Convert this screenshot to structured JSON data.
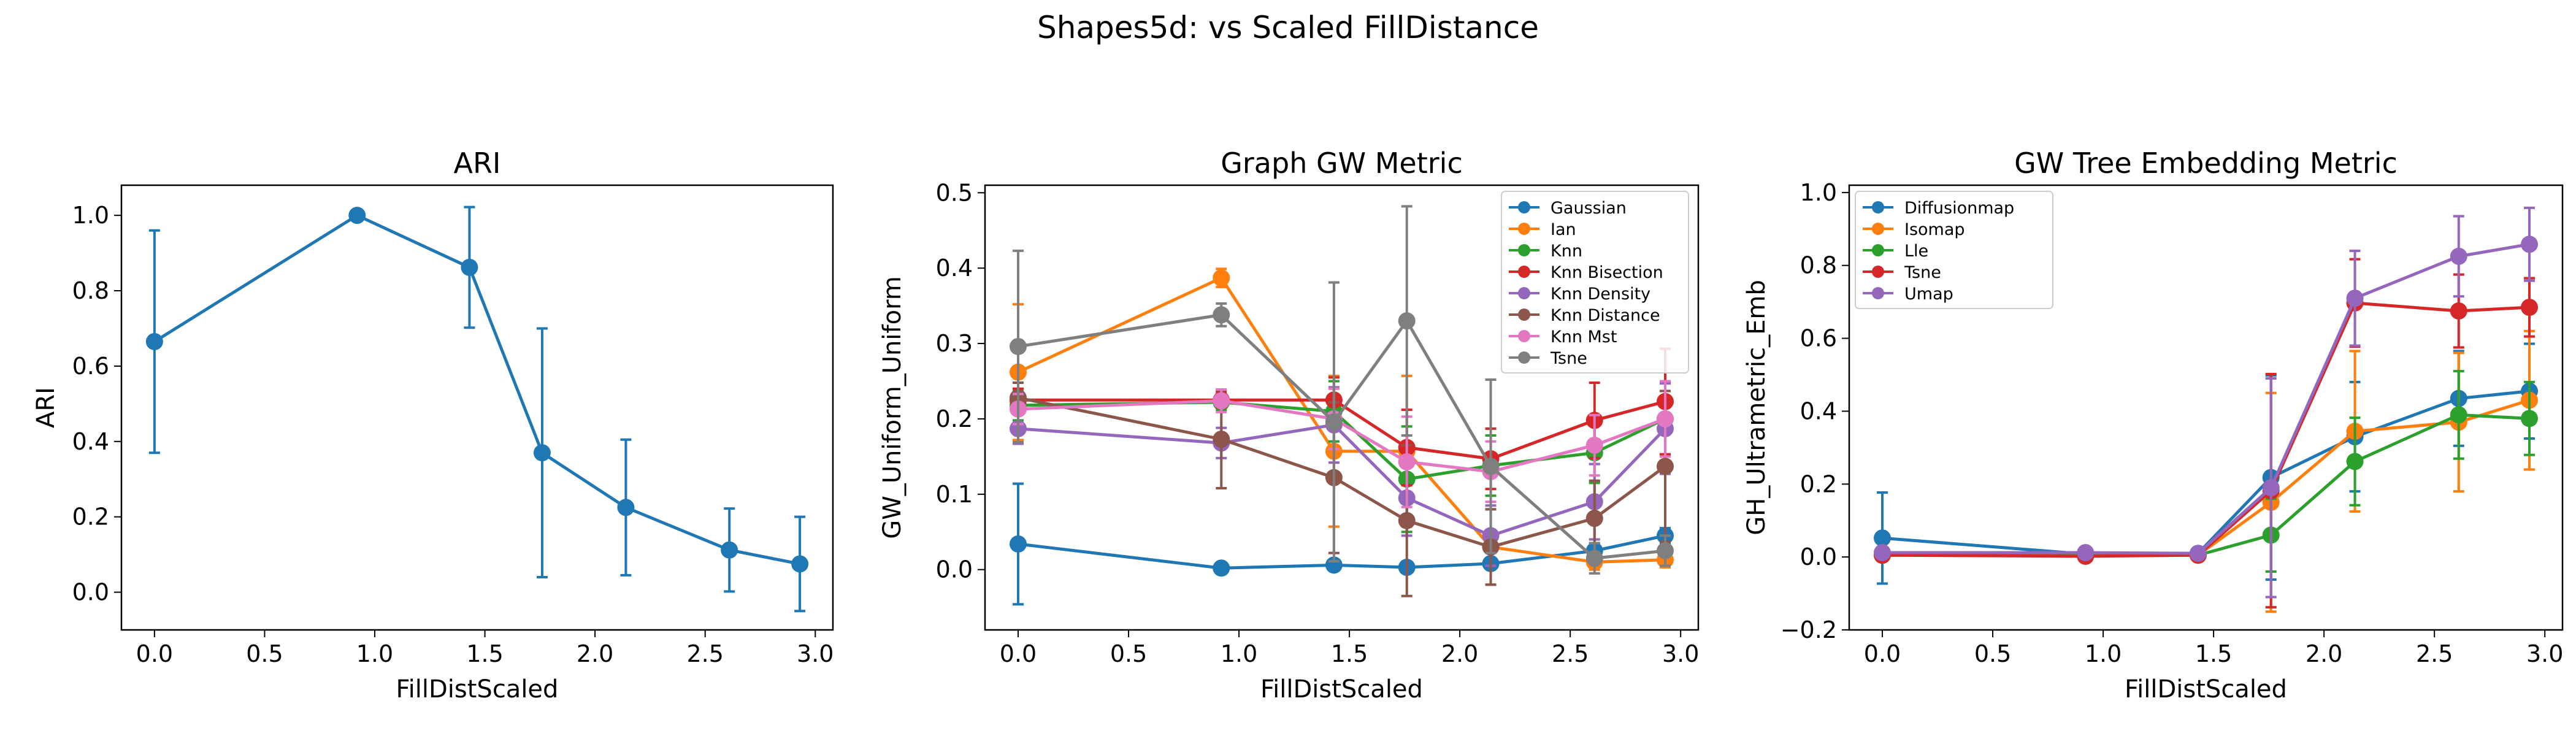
{
  "figure": {
    "suptitle": "Shapes5d: vs Scaled FillDistance"
  },
  "chart_data": [
    {
      "type": "line",
      "title": "ARI",
      "xlabel": "FillDistScaled",
      "ylabel": "ARI",
      "xlim": [
        -0.15,
        3.08
      ],
      "ylim": [
        -0.1,
        1.08
      ],
      "xticks": [
        0.0,
        0.5,
        1.0,
        1.5,
        2.0,
        2.5,
        3.0
      ],
      "yticks": [
        0.0,
        0.2,
        0.4,
        0.6,
        0.8,
        1.0
      ],
      "xtick_labels": [
        "0.0",
        "0.5",
        "1.0",
        "1.5",
        "2.0",
        "2.5",
        "3.0"
      ],
      "ytick_labels": [
        "0.0",
        "0.2",
        "0.4",
        "0.6",
        "0.8",
        "1.0"
      ],
      "legend": null,
      "x": [
        0.0,
        0.92,
        1.43,
        1.76,
        2.14,
        2.61,
        2.93
      ],
      "series": [
        {
          "color": "#1f77b4",
          "y": [
            0.665,
            1.0,
            0.862,
            0.37,
            0.225,
            0.112,
            0.075
          ],
          "err": [
            0.295,
            0.0,
            0.16,
            0.33,
            0.18,
            0.11,
            0.125
          ]
        }
      ]
    },
    {
      "type": "line",
      "title": "Graph GW Metric",
      "xlabel": "FillDistScaled",
      "ylabel": "GW_Uniform_Uniform",
      "xlim": [
        -0.15,
        3.08
      ],
      "ylim": [
        -0.08,
        0.51
      ],
      "xticks": [
        0.0,
        0.5,
        1.0,
        1.5,
        2.0,
        2.5,
        3.0
      ],
      "yticks": [
        0.0,
        0.1,
        0.2,
        0.3,
        0.4,
        0.5
      ],
      "xtick_labels": [
        "0.0",
        "0.5",
        "1.0",
        "1.5",
        "2.0",
        "2.5",
        "3.0"
      ],
      "ytick_labels": [
        "0.0",
        "0.1",
        "0.2",
        "0.3",
        "0.4",
        "0.5"
      ],
      "legend": "top-right",
      "x": [
        0.0,
        0.92,
        1.43,
        1.76,
        2.14,
        2.61,
        2.93
      ],
      "series": [
        {
          "name": "Gaussian",
          "color": "#1f77b4",
          "y": [
            0.034,
            0.002,
            0.006,
            0.003,
            0.008,
            0.025,
            0.045
          ],
          "err": [
            0.08,
            0.003,
            0.005,
            0.004,
            0.005,
            0.01,
            0.01
          ]
        },
        {
          "name": "Ian",
          "color": "#ff7f0e",
          "y": [
            0.262,
            0.387,
            0.157,
            0.157,
            0.03,
            0.01,
            0.013
          ],
          "err": [
            0.09,
            0.012,
            0.1,
            0.1,
            0.05,
            0.01,
            0.01
          ]
        },
        {
          "name": "Knn",
          "color": "#2ca02c",
          "y": [
            0.218,
            0.222,
            0.21,
            0.12,
            0.138,
            0.155,
            0.2
          ],
          "err": [
            0.02,
            0.01,
            0.04,
            0.07,
            0.04,
            0.04,
            0.05
          ]
        },
        {
          "name": "Knn Bisection",
          "color": "#d62728",
          "y": [
            0.225,
            0.225,
            0.225,
            0.162,
            0.147,
            0.198,
            0.223
          ],
          "err": [
            0.015,
            0.01,
            0.03,
            0.05,
            0.04,
            0.05,
            0.07
          ]
        },
        {
          "name": "Knn Density",
          "color": "#9467bd",
          "y": [
            0.187,
            0.168,
            0.192,
            0.095,
            0.045,
            0.09,
            0.187
          ],
          "err": [
            0.02,
            0.02,
            0.05,
            0.05,
            0.04,
            0.05,
            0.06
          ]
        },
        {
          "name": "Knn Distance",
          "color": "#8c564b",
          "y": [
            0.228,
            0.173,
            0.122,
            0.065,
            0.03,
            0.068,
            0.137
          ],
          "err": [
            0.02,
            0.065,
            0.1,
            0.1,
            0.05,
            0.05,
            0.1
          ]
        },
        {
          "name": "Knn Mst",
          "color": "#e377c2",
          "y": [
            0.213,
            0.224,
            0.2,
            0.143,
            0.13,
            0.165,
            0.2
          ],
          "err": [
            0.02,
            0.015,
            0.04,
            0.06,
            0.04,
            0.04,
            0.05
          ]
        },
        {
          "name": "Tsne",
          "color": "#7f7f7f",
          "y": [
            0.296,
            0.338,
            0.196,
            0.33,
            0.137,
            0.015,
            0.025
          ],
          "err": [
            0.127,
            0.015,
            0.185,
            0.152,
            0.115,
            0.02,
            0.02
          ]
        }
      ]
    },
    {
      "type": "line",
      "title": "GW Tree Embedding Metric",
      "xlabel": "FillDistScaled",
      "ylabel": "GH_Ultrametric_Emb",
      "xlim": [
        -0.15,
        3.08
      ],
      "ylim": [
        -0.2,
        1.02
      ],
      "xticks": [
        0.0,
        0.5,
        1.0,
        1.5,
        2.0,
        2.5,
        3.0
      ],
      "yticks": [
        -0.2,
        0.0,
        0.2,
        0.4,
        0.6,
        0.8,
        1.0
      ],
      "xtick_labels": [
        "0.0",
        "0.5",
        "1.0",
        "1.5",
        "2.0",
        "2.5",
        "3.0"
      ],
      "ytick_labels": [
        "−0.2",
        "0.0",
        "0.2",
        "0.4",
        "0.6",
        "0.8",
        "1.0"
      ],
      "legend": "top-left",
      "x": [
        0.0,
        0.92,
        1.43,
        1.76,
        2.14,
        2.61,
        2.93
      ],
      "series": [
        {
          "name": "Diffusionmap",
          "color": "#1f77b4",
          "y": [
            0.052,
            0.008,
            0.01,
            0.218,
            0.33,
            0.435,
            0.455
          ],
          "err": [
            0.125,
            0.01,
            0.01,
            0.28,
            0.15,
            0.13,
            0.13
          ]
        },
        {
          "name": "Isomap",
          "color": "#ff7f0e",
          "y": [
            0.005,
            0.005,
            0.005,
            0.15,
            0.345,
            0.37,
            0.43
          ],
          "err": [
            0.01,
            0.005,
            0.005,
            0.3,
            0.22,
            0.19,
            0.19
          ]
        },
        {
          "name": "Lle",
          "color": "#2ca02c",
          "y": [
            0.005,
            0.005,
            0.005,
            0.06,
            0.262,
            0.39,
            0.38
          ],
          "err": [
            0.005,
            0.005,
            0.005,
            0.1,
            0.12,
            0.12,
            0.1
          ]
        },
        {
          "name": "Tsne",
          "color": "#d62728",
          "y": [
            0.005,
            0.002,
            0.005,
            0.182,
            0.697,
            0.675,
            0.685
          ],
          "err": [
            0.005,
            0.005,
            0.005,
            0.32,
            0.12,
            0.1,
            0.08
          ]
        },
        {
          "name": "Umap",
          "color": "#9467bd",
          "y": [
            0.012,
            0.012,
            0.01,
            0.19,
            0.71,
            0.825,
            0.858
          ],
          "err": [
            0.01,
            0.005,
            0.005,
            0.3,
            0.13,
            0.11,
            0.1
          ]
        }
      ]
    }
  ]
}
